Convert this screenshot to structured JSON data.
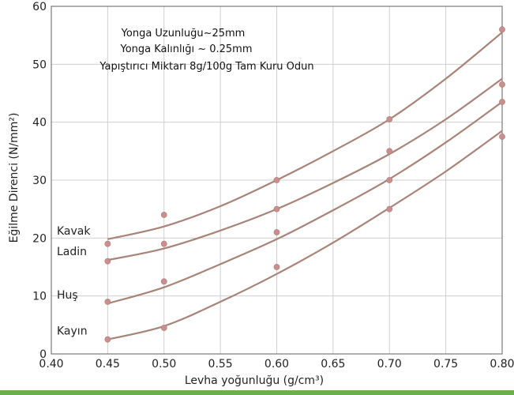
{
  "chart_data": {
    "type": "line",
    "xlabel": "Levha yoğunluğu (g/cm³)",
    "ylabel": "Eğilme Direnci (N/mm²)",
    "xlim": [
      0.4,
      0.8
    ],
    "ylim": [
      0,
      60
    ],
    "xticks": [
      "0.40",
      "0.45",
      "0.50",
      "0.55",
      "0.60",
      "0.65",
      "0.70",
      "0.75",
      "0.80"
    ],
    "yticks": [
      "0",
      "10",
      "20",
      "30",
      "40",
      "50",
      "60"
    ],
    "grid": true,
    "annotations": [
      "Yonga Uzunluğu~25mm",
      "Yonga Kalınlığı ~ 0.25mm",
      "Yapıştırıcı Miktarı 8g/100g Tam Kuru Odun"
    ],
    "series": [
      {
        "name": "Kavak",
        "points": [
          [
            0.45,
            19
          ],
          [
            0.5,
            24
          ],
          [
            0.6,
            30
          ],
          [
            0.7,
            40.5
          ],
          [
            0.8,
            56
          ]
        ],
        "curve": [
          [
            0.45,
            19.8
          ],
          [
            0.5,
            22.0
          ],
          [
            0.55,
            25.5
          ],
          [
            0.6,
            30.0
          ],
          [
            0.65,
            35.0
          ],
          [
            0.7,
            40.5
          ],
          [
            0.75,
            47.5
          ],
          [
            0.8,
            55.5
          ]
        ]
      },
      {
        "name": "Ladin",
        "points": [
          [
            0.45,
            16
          ],
          [
            0.5,
            19
          ],
          [
            0.6,
            21
          ],
          [
            0.6,
            25
          ],
          [
            0.7,
            35
          ],
          [
            0.8,
            46.5
          ]
        ],
        "curve": [
          [
            0.45,
            16.2
          ],
          [
            0.5,
            18.2
          ],
          [
            0.55,
            21.3
          ],
          [
            0.6,
            25.0
          ],
          [
            0.65,
            29.5
          ],
          [
            0.7,
            34.5
          ],
          [
            0.75,
            40.5
          ],
          [
            0.8,
            47.5
          ]
        ]
      },
      {
        "name": "Huş",
        "points": [
          [
            0.45,
            9
          ],
          [
            0.5,
            12.5
          ],
          [
            0.6,
            15
          ],
          [
            0.7,
            30
          ],
          [
            0.8,
            43.5
          ]
        ],
        "curve": [
          [
            0.45,
            8.7
          ],
          [
            0.5,
            11.5
          ],
          [
            0.55,
            15.5
          ],
          [
            0.6,
            19.8
          ],
          [
            0.65,
            24.8
          ],
          [
            0.7,
            30.2
          ],
          [
            0.75,
            36.5
          ],
          [
            0.8,
            43.5
          ]
        ]
      },
      {
        "name": "Kayın",
        "points": [
          [
            0.45,
            2.5
          ],
          [
            0.5,
            4.5
          ],
          [
            0.7,
            25
          ],
          [
            0.8,
            37.5
          ]
        ],
        "curve": [
          [
            0.45,
            2.5
          ],
          [
            0.5,
            4.8
          ],
          [
            0.55,
            9.0
          ],
          [
            0.6,
            13.8
          ],
          [
            0.65,
            19.2
          ],
          [
            0.7,
            25.2
          ],
          [
            0.75,
            31.5
          ],
          [
            0.8,
            38.5
          ]
        ]
      }
    ],
    "colors": {
      "line": "#a88478",
      "point": "#c98e8e",
      "grid": "#cfcfcf",
      "frame": "#7a7a7a",
      "footer_bar": "#6ab04c"
    }
  }
}
